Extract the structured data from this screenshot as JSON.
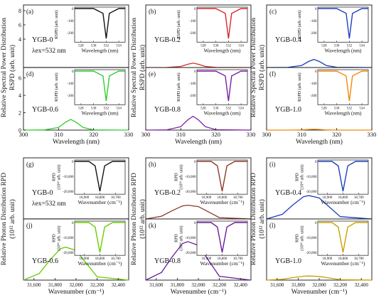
{
  "figure": {
    "top_ylabel": [
      "Relative Spectral Power Distribution",
      "RSPD (arb. unit)"
    ],
    "top_xlabel": "Wavelength (nm)",
    "bottom_ylabel": [
      "Relative Photon Distribution RPD",
      "(10¹² arb. unit)"
    ],
    "bottom_xlabel": "Wavenumber (cm⁻¹)",
    "excitation_label": "λex=532 nm"
  },
  "chart_data": [
    {
      "type": "line",
      "group": "spectral",
      "main_xlim": [
        300,
        330
      ],
      "main_xticks": [
        300,
        310,
        320,
        330
      ],
      "main_xticklabels": [
        "300",
        "310",
        "320",
        "330"
      ],
      "inset_xlim": [
        527,
        535
      ],
      "inset_xticks": [
        528,
        530,
        532,
        534
      ],
      "inset_xticklabels": [
        "528",
        "530",
        "532",
        "534"
      ],
      "inset_ylim": [
        -280,
        0
      ],
      "inset_yticks": [
        0,
        -100,
        -200
      ],
      "inset_yticklabels": [
        "0",
        "-100",
        "-200"
      ],
      "inset_xlabel": "Wavelength (nm)",
      "inset_ylabel": "RSPD (arb. unit)",
      "upper_yticks": [
        4,
        6,
        8
      ],
      "lower_yticks": [
        0,
        2,
        4,
        6
      ],
      "panels": [
        {
          "letter": "(a)",
          "sample": "YGB-0",
          "color": "#111111",
          "main_peak": 0,
          "show_ex": true,
          "show_xlabel": false
        },
        {
          "letter": "(b)",
          "sample": "YGB-0.2",
          "color": "#d62728",
          "main_peak": 0.7,
          "show_ex": false,
          "show_xlabel": false
        },
        {
          "letter": "(c)",
          "sample": "YGB-0.4",
          "color": "#1f3fbf",
          "main_peak": 1.3,
          "show_ex": false,
          "show_xlabel": false
        },
        {
          "letter": "(d)",
          "sample": "YGB-0.6",
          "color": "#33cc33",
          "main_peak": 1.7,
          "show_ex": false,
          "show_xlabel": true
        },
        {
          "letter": "(e)",
          "sample": "YGB-0.8",
          "color": "#7b1fa2",
          "main_peak": 2.2,
          "show_ex": false,
          "show_xlabel": true
        },
        {
          "letter": "(f)",
          "sample": "YGB-1.0",
          "color": "#f08a0b",
          "main_peak": 0.15,
          "show_ex": false,
          "show_xlabel": true
        }
      ],
      "inset": {
        "x": [
          527,
          530,
          531.5,
          532,
          532.5,
          534,
          535
        ],
        "y": [
          0,
          0,
          -40,
          -250,
          -40,
          0,
          0
        ]
      },
      "main_shape": {
        "x": [
          300,
          306,
          310,
          312,
          313.5,
          315,
          317,
          320,
          330
        ],
        "rel": [
          0,
          0.02,
          0.25,
          0.75,
          1.0,
          0.75,
          0.25,
          0.03,
          0
        ]
      }
    },
    {
      "type": "line",
      "group": "photon",
      "main_xlim": [
        31500,
        32500
      ],
      "main_xticks": [
        31600,
        31800,
        32000,
        32200,
        32400
      ],
      "main_xticklabels": [
        "31,600",
        "31,800",
        "32,000",
        "32,200",
        "32,400"
      ],
      "inset_xlim": [
        18960,
        18640
      ],
      "inset_xticks": [
        18900,
        18800,
        18700
      ],
      "inset_xticklabels": [
        "18,900",
        "18,800",
        "18,700"
      ],
      "inset_ylim": [
        -22000,
        0
      ],
      "inset_yticks": [
        0,
        -10000,
        -20000
      ],
      "inset_yticklabels": [
        "0",
        "-10,000",
        "-20,000"
      ],
      "inset_xlabel": "Wavenumber (cm⁻¹)",
      "inset_ylabel": [
        "RPD",
        "(10¹² arb. unit)"
      ],
      "upper_yticks": [],
      "lower_yticks": [],
      "panels": [
        {
          "letter": "(g)",
          "sample": "YGB-0",
          "color": "#111111",
          "main_peak": 0,
          "show_ex": true,
          "show_xlabel": false
        },
        {
          "letter": "(h)",
          "sample": "YGB-0.2",
          "color": "#8b3a2a",
          "main_peak": 10,
          "show_ex": false,
          "show_xlabel": false
        },
        {
          "letter": "(i)",
          "sample": "YGB-0.4",
          "color": "#1f3fbf",
          "main_peak": 17,
          "show_ex": false,
          "show_xlabel": false
        },
        {
          "letter": "(j)",
          "sample": "YGB-0.6",
          "color": "#66cc00",
          "main_peak": 24,
          "show_ex": false,
          "show_xlabel": true
        },
        {
          "letter": "(k)",
          "sample": "YGB-0.8",
          "color": "#6a1b9a",
          "main_peak": 28,
          "show_ex": false,
          "show_xlabel": true
        },
        {
          "letter": "(l)",
          "sample": "YGB-1.0",
          "color": "#c8a000",
          "main_peak": 3,
          "show_ex": false,
          "show_xlabel": true
        }
      ],
      "inset": {
        "x": [
          18960,
          18870,
          18830,
          18800,
          18770,
          18720,
          18640
        ],
        "y": [
          0,
          0,
          -3000,
          -20000,
          -3000,
          0,
          0
        ]
      },
      "main_shape": {
        "x": [
          31500,
          31650,
          31750,
          31850,
          31900,
          32000,
          32100,
          32200,
          32500
        ],
        "rel": [
          0,
          0.2,
          0.6,
          0.95,
          1.0,
          0.9,
          0.5,
          0.1,
          0
        ]
      }
    }
  ]
}
